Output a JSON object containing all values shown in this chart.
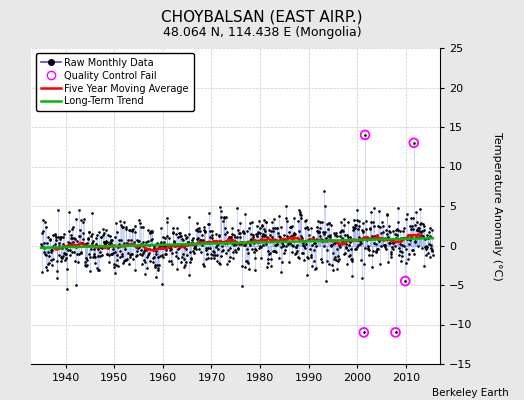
{
  "title": "CHOYBALSAN (EAST AIRP.)",
  "subtitle": "48.064 N, 114.438 E (Mongolia)",
  "ylabel": "Temperature Anomaly (°C)",
  "credit": "Berkeley Earth",
  "xlim": [
    1933,
    2017
  ],
  "ylim": [
    -15,
    25
  ],
  "yticks": [
    -15,
    -10,
    -5,
    0,
    5,
    10,
    15,
    20,
    25
  ],
  "xticks": [
    1940,
    1950,
    1960,
    1970,
    1980,
    1990,
    2000,
    2010
  ],
  "bg_color": "#e8e8e8",
  "plot_bg_color": "#ffffff",
  "line_color": "#4444ff",
  "stem_color": "#6688ff",
  "ma_color": "#ff0000",
  "trend_color": "#00bb00",
  "qc_color": "#ff00ff",
  "seed": 17
}
